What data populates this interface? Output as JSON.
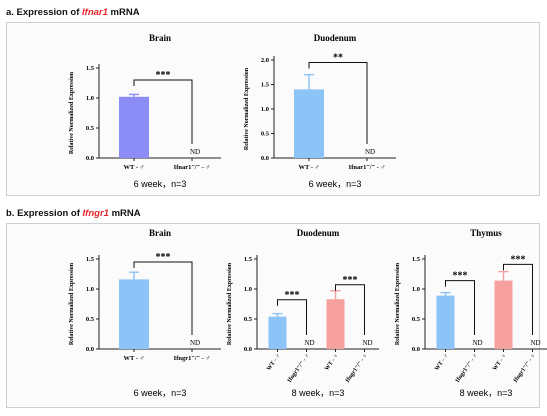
{
  "section_a": {
    "prefix": "a. Expression of ",
    "gene": "Ifnar1",
    "suffix": " mRNA"
  },
  "section_b": {
    "prefix": "b. Expression of ",
    "gene": "Ifngr1",
    "suffix": " mRNA"
  },
  "chart_data": [
    {
      "type": "bar",
      "title": "Brain",
      "ylabel": "Relative Normalized Expression",
      "ylim": [
        0,
        1.5
      ],
      "yticks": [
        "0.0",
        "0.5",
        "1.0",
        "1.5"
      ],
      "categories": [
        "WT - ♂",
        "Ifnar1⁻/⁻ - ♂"
      ],
      "values": [
        1.02,
        0
      ],
      "errors": [
        0.04,
        0
      ],
      "colors": [
        "#8c8cf7",
        "#8c8cf7"
      ],
      "nd": [
        "",
        "ND"
      ],
      "significance": [
        {
          "from": 0,
          "to": 1,
          "label": "***",
          "y": 1.3
        }
      ],
      "caption": "6 week，n=3"
    },
    {
      "type": "bar",
      "title": "Duodenum",
      "ylabel": "Relative Normalized Expression",
      "ylim": [
        0,
        2.0
      ],
      "yticks": [
        "0.0",
        "0.5",
        "1.0",
        "1.5",
        "2.0"
      ],
      "categories": [
        "WT - ♂",
        "Ifnar1⁻/⁻ - ♂"
      ],
      "values": [
        1.4,
        0
      ],
      "errors": [
        0.3,
        0
      ],
      "colors": [
        "#8cc4f7",
        "#8cc4f7"
      ],
      "nd": [
        "",
        "ND"
      ],
      "significance": [
        {
          "from": 0,
          "to": 1,
          "label": "**",
          "y": 1.95
        }
      ],
      "caption": "6 week，n=3"
    },
    {
      "type": "bar",
      "title": "Brain",
      "ylabel": "Relative Normalized Expression",
      "ylim": [
        0,
        1.5
      ],
      "yticks": [
        "0.0",
        "0.5",
        "1.0",
        "1.5"
      ],
      "categories": [
        "WT - ♂",
        "Ifngr1⁻/⁻ - ♂"
      ],
      "values": [
        1.16,
        0
      ],
      "errors": [
        0.12,
        0
      ],
      "colors": [
        "#8cc4f7",
        "#8cc4f7"
      ],
      "nd": [
        "",
        "ND"
      ],
      "significance": [
        {
          "from": 0,
          "to": 1,
          "label": "***",
          "y": 1.45
        }
      ],
      "caption": "6 week，n=3"
    },
    {
      "type": "bar",
      "title": "Duodenum",
      "ylabel": "Relative Normalized Expression",
      "ylim": [
        0,
        1.5
      ],
      "yticks": [
        "0.0",
        "0.5",
        "1.0",
        "1.5"
      ],
      "categories": [
        "WT - ♂",
        "Ifngr1⁻/⁻ - ♂",
        "WT - ♀",
        "Ifngr1⁻/⁻ - ♀"
      ],
      "values": [
        0.54,
        0,
        0.83,
        0
      ],
      "errors": [
        0.05,
        0,
        0.14,
        0
      ],
      "colors": [
        "#8cc4f7",
        "#8cc4f7",
        "#f7a0a0",
        "#f7a0a0"
      ],
      "nd": [
        "",
        "ND",
        "",
        "ND"
      ],
      "significance": [
        {
          "from": 0,
          "to": 1,
          "label": "***",
          "y": 0.82
        },
        {
          "from": 2,
          "to": 3,
          "label": "***",
          "y": 1.07
        }
      ],
      "caption": "8 week，n=3"
    },
    {
      "type": "bar",
      "title": "Thymus",
      "ylabel": "Relative Normalized Expression",
      "ylim": [
        0,
        1.5
      ],
      "yticks": [
        "0.0",
        "0.5",
        "1.0",
        "1.5"
      ],
      "categories": [
        "WT - ♂",
        "Ifngr1⁻/⁻ - ♂",
        "WT - ♀",
        "Ifngr1⁻/⁻ - ♀"
      ],
      "values": [
        0.89,
        0,
        1.14,
        0
      ],
      "errors": [
        0.05,
        0,
        0.15,
        0
      ],
      "colors": [
        "#8cc4f7",
        "#8cc4f7",
        "#f7a0a0",
        "#f7a0a0"
      ],
      "nd": [
        "",
        "ND",
        "",
        "ND"
      ],
      "significance": [
        {
          "from": 0,
          "to": 1,
          "label": "***",
          "y": 1.14
        },
        {
          "from": 2,
          "to": 3,
          "label": "***",
          "y": 1.41
        }
      ],
      "caption": "8 week，n=3"
    }
  ]
}
